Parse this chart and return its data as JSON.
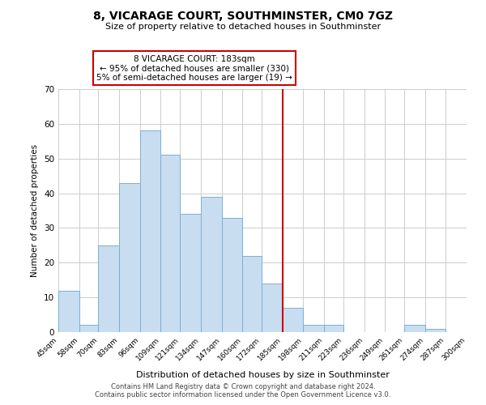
{
  "title": "8, VICARAGE COURT, SOUTHMINSTER, CM0 7GZ",
  "subtitle": "Size of property relative to detached houses in Southminster",
  "xlabel": "Distribution of detached houses by size in Southminster",
  "ylabel": "Number of detached properties",
  "bar_heights": [
    12,
    2,
    25,
    43,
    58,
    51,
    34,
    39,
    33,
    22,
    14,
    7,
    2,
    2,
    0,
    0,
    0,
    2,
    1,
    0
  ],
  "bin_edges": [
    45,
    58,
    70,
    83,
    96,
    109,
    121,
    134,
    147,
    160,
    172,
    185,
    198,
    211,
    223,
    236,
    249,
    261,
    274,
    287,
    300
  ],
  "tick_labels": [
    "45sqm",
    "58sqm",
    "70sqm",
    "83sqm",
    "96sqm",
    "109sqm",
    "121sqm",
    "134sqm",
    "147sqm",
    "160sqm",
    "172sqm",
    "185sqm",
    "198sqm",
    "211sqm",
    "223sqm",
    "236sqm",
    "249sqm",
    "261sqm",
    "274sqm",
    "287sqm",
    "300sqm"
  ],
  "bar_color": "#c9ddf0",
  "bar_edge_color": "#7bafd4",
  "vline_x": 185,
  "vline_color": "#cc0000",
  "ylim": [
    0,
    70
  ],
  "yticks": [
    0,
    10,
    20,
    30,
    40,
    50,
    60,
    70
  ],
  "annotation_title": "8 VICARAGE COURT: 183sqm",
  "annotation_line1": "← 95% of detached houses are smaller (330)",
  "annotation_line2": "5% of semi-detached houses are larger (19) →",
  "footer1": "Contains HM Land Registry data © Crown copyright and database right 2024.",
  "footer2": "Contains public sector information licensed under the Open Government Licence v3.0.",
  "background_color": "#ffffff",
  "grid_color": "#cccccc"
}
